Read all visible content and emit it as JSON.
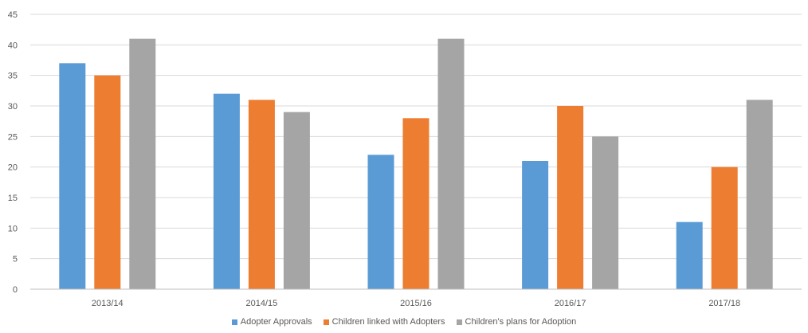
{
  "chart_data": {
    "type": "bar",
    "categories": [
      "2013/14",
      "2014/15",
      "2015/16",
      "2016/17",
      "2017/18"
    ],
    "series": [
      {
        "name": "Adopter Approvals",
        "color": "#5b9bd5",
        "values": [
          37,
          32,
          22,
          21,
          11
        ]
      },
      {
        "name": "Children linked with Adopters",
        "color": "#ed7d31",
        "values": [
          35,
          31,
          28,
          30,
          20
        ]
      },
      {
        "name": "Children's plans for Adoption",
        "color": "#a5a5a5",
        "values": [
          41,
          29,
          41,
          25,
          31
        ]
      }
    ],
    "yticks": [
      "0",
      "5",
      "10",
      "15",
      "20",
      "25",
      "30",
      "35",
      "40",
      "45"
    ],
    "ylim": [
      0,
      45
    ],
    "grid": true,
    "legend_position": "bottom"
  }
}
